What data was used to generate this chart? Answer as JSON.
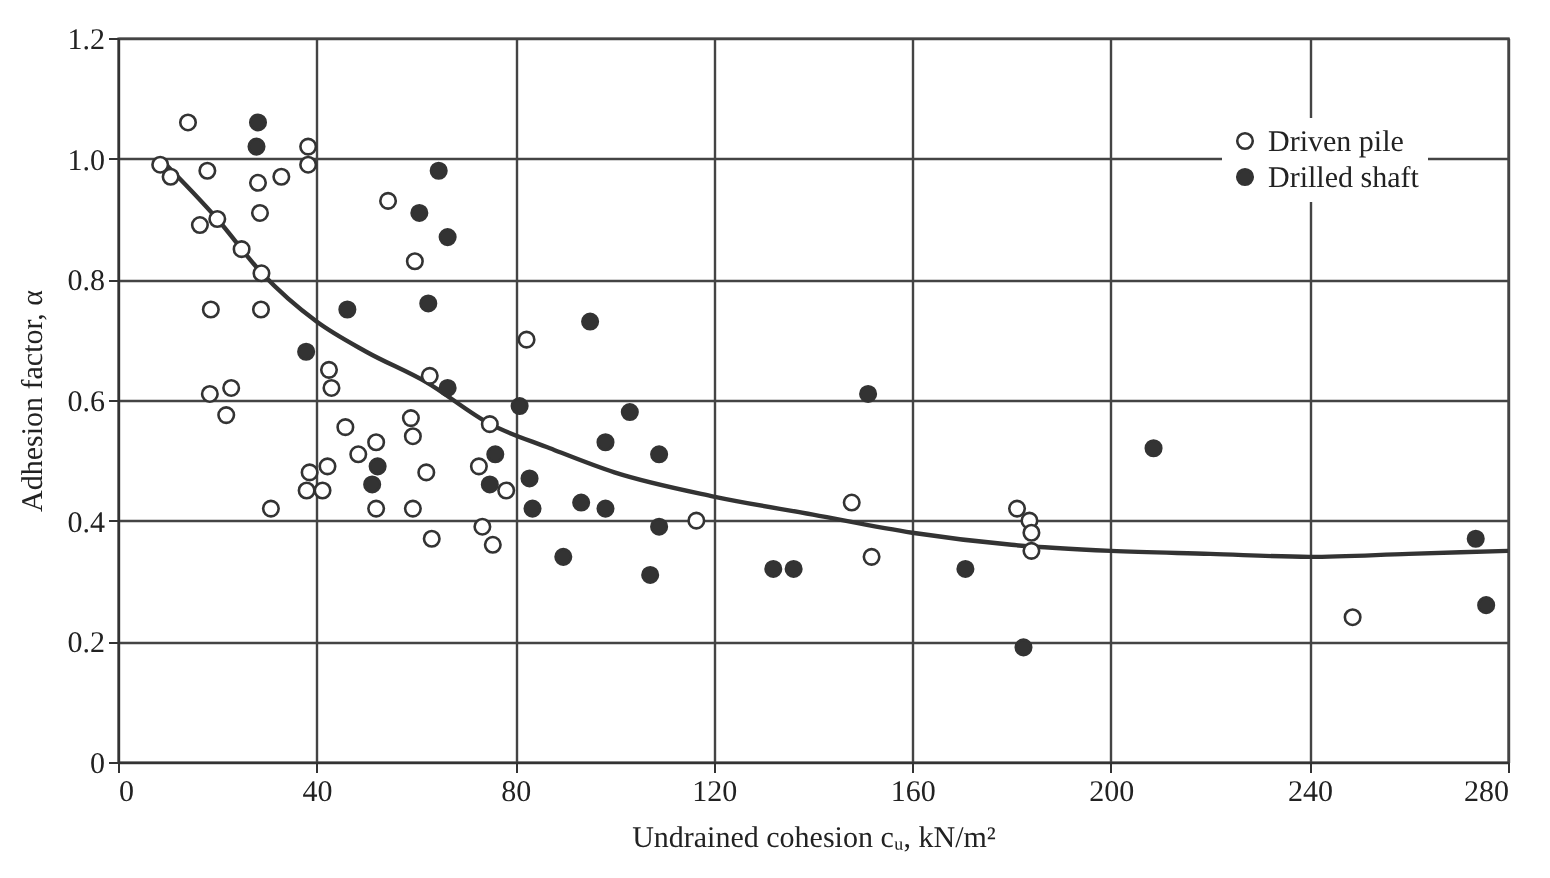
{
  "chart_data": {
    "type": "scatter",
    "xlabel": "Undrained cohesion cᵤ, kN/m²",
    "ylabel": "Adhesion factor, α",
    "xlim": [
      0,
      280
    ],
    "xticks": [
      0,
      40,
      80,
      120,
      160,
      200,
      240,
      280
    ],
    "ylim": [
      0,
      1.2
    ],
    "yticks": [
      0,
      {
        "value": 0.2,
        "label": "0.2"
      },
      0.4,
      0.6,
      0.8,
      {
        "value": 1,
        "label": "1.0"
      },
      1.2
    ],
    "grid": true,
    "legend": "top right",
    "marker": "circle",
    "series": [
      {
        "name": "Driven pile",
        "color": "#ffffff",
        "x": [
          8.5,
          14.1,
          10.6,
          18,
          16.5,
          20,
          24.9,
          28.9,
          18.7,
          28.8,
          28.2,
          28.6,
          32.9,
          38.3,
          38.3,
          54.4,
          59.8,
          42.5,
          43,
          62.8,
          82.3,
          18.5,
          22.8,
          21.8,
          30.8,
          38.6,
          38,
          42.2,
          41.2,
          45.8,
          48.4,
          52,
          52,
          59,
          59.4,
          59.4,
          62.1,
          63.2,
          72.7,
          73.4,
          75.5,
          74.9,
          78.2,
          116.5,
          147.8,
          151.8,
          181.1,
          183.6,
          184,
          184,
          248.7
        ],
        "values": [
          0.99,
          1.06,
          0.97,
          0.98,
          0.89,
          0.9,
          0.85,
          0.81,
          0.75,
          0.75,
          0.96,
          0.91,
          0.97,
          1.02,
          0.99,
          0.93,
          0.83,
          0.65,
          0.62,
          0.64,
          0.7,
          0.61,
          0.62,
          0.575,
          0.42,
          0.48,
          0.45,
          0.49,
          0.45,
          0.555,
          0.51,
          0.53,
          0.42,
          0.57,
          0.54,
          0.42,
          0.48,
          0.37,
          0.49,
          0.39,
          0.36,
          0.56,
          0.45,
          0.4,
          0.43,
          0.34,
          0.42,
          0.4,
          0.38,
          0.35,
          0.24
        ]
      },
      {
        "name": "Drilled shaft",
        "color": "#333333",
        "x": [
          28.2,
          27.9,
          64.6,
          60.7,
          66.4,
          62.5,
          46.2,
          37.9,
          66.4,
          80.9,
          52.3,
          51.2,
          76,
          74.9,
          82.9,
          83.5,
          89.7,
          95.1,
          103.1,
          98.2,
          109,
          93.3,
          98.2,
          109,
          107.2,
          132,
          136.1,
          151.1,
          170.7,
          208.6,
          182.4,
          273.5,
          275.6
        ],
        "values": [
          1.06,
          1.02,
          0.98,
          0.91,
          0.87,
          0.76,
          0.75,
          0.68,
          0.62,
          0.59,
          0.49,
          0.46,
          0.51,
          0.46,
          0.47,
          0.42,
          0.34,
          0.73,
          0.58,
          0.53,
          0.51,
          0.43,
          0.42,
          0.39,
          0.31,
          0.32,
          0.32,
          0.61,
          0.32,
          0.52,
          0.19,
          0.37,
          0.26
        ]
      },
      {
        "type": "line",
        "color": "#333333",
        "marker": "none",
        "x": [
          8.5,
          20,
          29,
          40,
          50,
          62,
          75,
          87,
          100,
          120,
          140,
          160,
          180,
          200,
          220,
          240,
          260,
          280
        ],
        "values": [
          1.0,
          0.9,
          0.81,
          0.73,
          0.68,
          0.63,
          0.56,
          0.52,
          0.48,
          0.44,
          0.41,
          0.38,
          0.36,
          0.35,
          0.345,
          0.34,
          0.345,
          0.35
        ]
      }
    ]
  }
}
